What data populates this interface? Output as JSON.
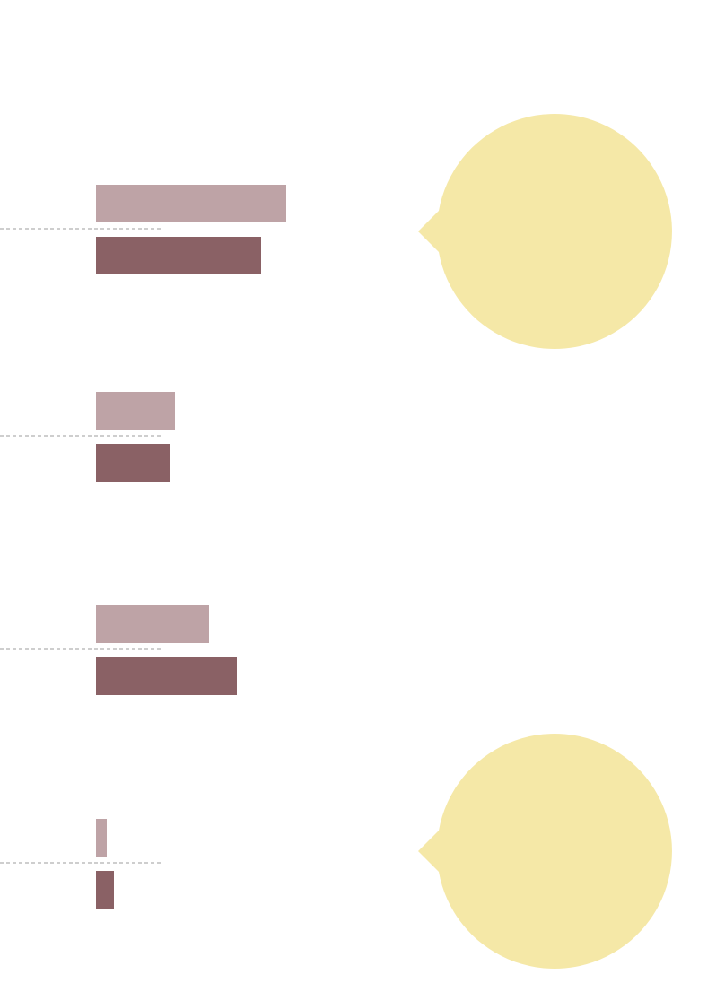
{
  "chart_data": {
    "type": "bar",
    "orientation": "horizontal",
    "categories": [
      "",
      "",
      "",
      ""
    ],
    "series": [
      {
        "values": [
          212,
          88,
          126,
          12
        ],
        "color": "#bea3a6"
      },
      {
        "values": [
          184,
          83,
          157,
          20
        ],
        "color": "#8a6165"
      }
    ],
    "xlim": [
      0,
      212
    ],
    "grid": false,
    "legend": "none",
    "annotations": [
      {
        "type": "speech-bubble",
        "group": 0,
        "color": "#f5e8a7"
      },
      {
        "type": "speech-bubble",
        "group": 3,
        "color": "#f5e8a7"
      }
    ],
    "separator_color": "#b0b0b0"
  }
}
